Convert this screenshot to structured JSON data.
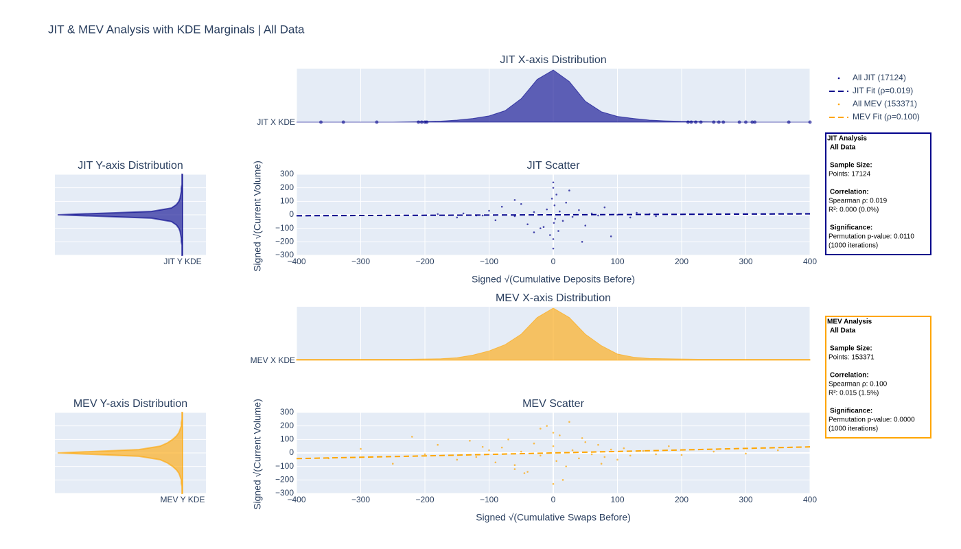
{
  "title": "JIT & MEV Analysis with KDE Marginals | All Data",
  "chart_data": [
    {
      "type": "kde",
      "orient": "x",
      "title": "JIT X-axis Distribution",
      "label": "JIT X KDE",
      "color": "#00008b",
      "opacity": 0.6,
      "xlim": [
        -400,
        400
      ],
      "xticks": [
        -400,
        -300,
        -200,
        -100,
        0,
        100,
        200,
        300,
        400
      ],
      "grid": true,
      "x": [
        -400,
        -375,
        -350,
        -325,
        -300,
        -275,
        -250,
        -225,
        -200,
        -175,
        -150,
        -125,
        -100,
        -75,
        -50,
        -25,
        0,
        25,
        50,
        75,
        100,
        125,
        150,
        175,
        200,
        225,
        250,
        275,
        300,
        325,
        350,
        375,
        400
      ],
      "values": [
        0,
        0,
        0,
        0,
        0,
        0,
        0,
        0.005,
        0.01,
        0.02,
        0.04,
        0.07,
        0.12,
        0.22,
        0.45,
        0.82,
        1,
        0.78,
        0.4,
        0.2,
        0.11,
        0.07,
        0.04,
        0.025,
        0.015,
        0.01,
        0.005,
        0,
        0,
        0,
        0,
        0,
        0
      ],
      "outliers": [
        -362,
        -327,
        -275,
        -210,
        -205,
        -200,
        -197,
        210,
        215,
        222,
        230,
        250,
        258,
        265,
        290,
        300,
        310,
        314,
        367,
        400
      ]
    },
    {
      "type": "kde",
      "orient": "y",
      "title": "JIT Y-axis Distribution",
      "label": "JIT Y KDE",
      "color": "#00008b",
      "opacity": 0.6,
      "ylim": [
        -300,
        300
      ],
      "yticks": [
        -300,
        -200,
        -100,
        0,
        100,
        200,
        300
      ],
      "grid": true,
      "y": [
        -300,
        -275,
        -250,
        -225,
        -200,
        -175,
        -150,
        -125,
        -100,
        -75,
        -50,
        -25,
        0,
        25,
        50,
        75,
        100,
        125,
        150,
        175,
        200,
        225,
        250,
        275,
        300
      ],
      "values": [
        0.005,
        0.005,
        0.005,
        0.005,
        0.01,
        0.01,
        0.015,
        0.02,
        0.03,
        0.05,
        0.09,
        0.25,
        1,
        0.25,
        0.09,
        0.05,
        0.03,
        0.02,
        0.015,
        0.01,
        0.01,
        0.005,
        0.005,
        0.005,
        0.005
      ]
    },
    {
      "type": "scatter",
      "title": "JIT Scatter",
      "x_label": "Signed √(Cumulative Deposits Before)",
      "y_label": "Signed √(Current Volume)",
      "xlim": [
        -400,
        400
      ],
      "ylim": [
        -300,
        300
      ],
      "grid": true,
      "xticks": [
        {
          "value": -400,
          "label": "−400"
        },
        {
          "value": -300,
          "label": "−300"
        },
        {
          "value": -200,
          "label": "−200"
        },
        {
          "value": -100,
          "label": "−100"
        },
        0,
        100,
        200,
        300,
        400
      ],
      "yticks": [
        {
          "value": -300,
          "label": "−300"
        },
        {
          "value": -200,
          "label": "−200"
        },
        {
          "value": -100,
          "label": "−100"
        },
        0,
        100,
        200,
        300
      ],
      "series": [
        {
          "name": "All JIT (17124)",
          "color": "#00008b",
          "x": [
            -180,
            -150,
            -140,
            -120,
            -100,
            -90,
            -80,
            -60,
            -50,
            -40,
            -30,
            -20,
            -10,
            -5,
            -2,
            0,
            0,
            1,
            2,
            3,
            5,
            8,
            10,
            15,
            20,
            30,
            40,
            50,
            60,
            70,
            80,
            100,
            120,
            130,
            150,
            160,
            -60,
            -30,
            0,
            0,
            25,
            90,
            -110,
            45,
            -15
          ],
          "values": [
            5,
            -20,
            10,
            -5,
            30,
            -40,
            60,
            -10,
            80,
            -70,
            20,
            -100,
            40,
            -150,
            120,
            200,
            -180,
            -60,
            70,
            -30,
            150,
            -120,
            25,
            -45,
            90,
            -15,
            35,
            -80,
            10,
            -5,
            55,
            0,
            -20,
            15,
            5,
            -10,
            110,
            -130,
            -250,
            240,
            180,
            -160,
            -5,
            -200,
            -90
          ]
        },
        {
          "name": "JIT Fit (ρ=0.019)",
          "color": "#00008b",
          "dash": true,
          "x": [
            -400,
            400
          ],
          "values": [
            -7,
            7
          ]
        }
      ],
      "annotation": {
        "color": "#00008b",
        "heading": [
          "JIT Analysis",
          "All Data"
        ],
        "sections": [
          {
            "title": "Sample Size:",
            "lines": [
              "Points: 17124"
            ]
          },
          {
            "title": "Correlation:",
            "lines": [
              "Spearman ρ: 0.019",
              "R²: 0.000 (0.0%)"
            ]
          },
          {
            "title": "Significance:",
            "lines": [
              "Permutation p-value: 0.0110",
              "(1000 iterations)"
            ]
          }
        ]
      }
    },
    {
      "type": "kde",
      "orient": "x",
      "title": "MEV X-axis Distribution",
      "label": "MEV X KDE",
      "color": "#ffa500",
      "opacity": 0.6,
      "xlim": [
        -400,
        400
      ],
      "xticks": [
        -400,
        -300,
        -200,
        -100,
        0,
        100,
        200,
        300,
        400
      ],
      "grid": true,
      "x": [
        -400,
        -375,
        -350,
        -325,
        -300,
        -275,
        -250,
        -225,
        -200,
        -175,
        -150,
        -125,
        -100,
        -75,
        -50,
        -25,
        0,
        25,
        50,
        75,
        100,
        125,
        150,
        175,
        200,
        225,
        250,
        275,
        300,
        325,
        350,
        375,
        400
      ],
      "values": [
        0.02,
        0.02,
        0.02,
        0.02,
        0.02,
        0.02,
        0.02,
        0.02,
        0.025,
        0.03,
        0.05,
        0.1,
        0.18,
        0.3,
        0.5,
        0.82,
        1,
        0.82,
        0.5,
        0.28,
        0.12,
        0.06,
        0.035,
        0.03,
        0.025,
        0.02,
        0.02,
        0.02,
        0.02,
        0.02,
        0.02,
        0.02,
        0.02
      ]
    },
    {
      "type": "kde",
      "orient": "y",
      "title": "MEV Y-axis Distribution",
      "label": "MEV Y KDE",
      "color": "#ffa500",
      "opacity": 0.6,
      "ylim": [
        -300,
        300
      ],
      "yticks": [
        -300,
        -200,
        -100,
        0,
        100,
        200,
        300
      ],
      "grid": true,
      "y": [
        -300,
        -275,
        -250,
        -225,
        -200,
        -175,
        -150,
        -125,
        -100,
        -75,
        -50,
        -25,
        0,
        25,
        50,
        75,
        100,
        125,
        150,
        175,
        200,
        225,
        250,
        275,
        300
      ],
      "values": [
        0.005,
        0.005,
        0.005,
        0.01,
        0.01,
        0.02,
        0.03,
        0.05,
        0.08,
        0.12,
        0.18,
        0.35,
        1,
        0.35,
        0.18,
        0.12,
        0.08,
        0.05,
        0.03,
        0.02,
        0.01,
        0.01,
        0.005,
        0.005,
        0.005
      ]
    },
    {
      "type": "scatter",
      "title": "MEV Scatter",
      "x_label": "Signed √(Cumulative Swaps Before)",
      "y_label": "Signed √(Current Volume)",
      "xlim": [
        -400,
        400
      ],
      "ylim": [
        -300,
        300
      ],
      "grid": true,
      "xticks": [
        {
          "value": -400,
          "label": "−400"
        },
        {
          "value": -300,
          "label": "−300"
        },
        {
          "value": -200,
          "label": "−200"
        },
        {
          "value": -100,
          "label": "−100"
        },
        0,
        100,
        200,
        300,
        400
      ],
      "yticks": [
        {
          "value": -300,
          "label": "−300"
        },
        {
          "value": -200,
          "label": "−200"
        },
        {
          "value": -100,
          "label": "−100"
        },
        0,
        100,
        200,
        300
      ],
      "series": [
        {
          "name": "All MEV (153371)",
          "color": "#ffa500",
          "x": [
            -350,
            -300,
            -250,
            -220,
            -200,
            -180,
            -150,
            -130,
            -120,
            -100,
            -90,
            -80,
            -70,
            -60,
            -50,
            -40,
            -30,
            -20,
            -10,
            0,
            0,
            0,
            5,
            10,
            20,
            30,
            40,
            50,
            60,
            70,
            80,
            90,
            100,
            110,
            120,
            140,
            160,
            180,
            200,
            250,
            300,
            350,
            -60,
            -20,
            15,
            45,
            75,
            -110,
            -45,
            25
          ],
          "values": [
            -40,
            30,
            -80,
            120,
            -10,
            60,
            -50,
            90,
            -30,
            20,
            -70,
            40,
            100,
            -90,
            10,
            -140,
            70,
            -20,
            200,
            -230,
            150,
            50,
            -60,
            130,
            -100,
            20,
            -40,
            80,
            -10,
            60,
            -30,
            25,
            -50,
            35,
            -20,
            15,
            -10,
            50,
            -15,
            10,
            -5,
            20,
            -120,
            180,
            -200,
            110,
            -80,
            45,
            -150,
            230
          ]
        },
        {
          "name": "MEV Fit (ρ=0.100)",
          "color": "#ffa500",
          "dash": true,
          "x": [
            -400,
            -200,
            0,
            200,
            400
          ],
          "values": [
            -42,
            -22,
            0,
            22,
            45
          ]
        }
      ],
      "annotation": {
        "color": "#ffa500",
        "heading": [
          "MEV Analysis",
          "All Data"
        ],
        "sections": [
          {
            "title": "Sample Size:",
            "lines": [
              "Points: 153371"
            ]
          },
          {
            "title": "Correlation:",
            "lines": [
              "Spearman ρ: 0.100",
              "R²: 0.015 (1.5%)"
            ]
          },
          {
            "title": "Significance:",
            "lines": [
              "Permutation p-value: 0.0000",
              "(1000 iterations)"
            ]
          }
        ]
      }
    }
  ]
}
